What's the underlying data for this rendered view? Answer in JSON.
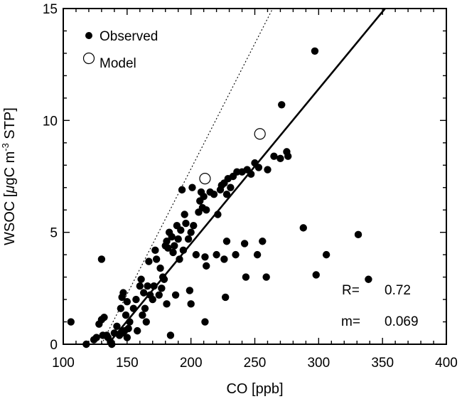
{
  "chart_data": {
    "type": "scatter",
    "xlabel": "CO [ppb]",
    "ylabel_parts": [
      "WSOC [",
      "μ",
      "gC m",
      "-3",
      " STP]"
    ],
    "xlim": [
      100,
      400
    ],
    "ylim": [
      0,
      15
    ],
    "xticks": [
      100,
      150,
      200,
      250,
      300,
      350,
      400
    ],
    "yticks": [
      0,
      5,
      10,
      15
    ],
    "grid": false,
    "legend_position": "top-left",
    "series": [
      {
        "name": "Observed",
        "marker": "filled-circle",
        "color": "#000000",
        "points": [
          [
            106,
            1.0
          ],
          [
            118,
            0.0
          ],
          [
            124,
            0.2
          ],
          [
            126,
            0.3
          ],
          [
            128,
            0.9
          ],
          [
            130,
            1.1
          ],
          [
            130,
            3.8
          ],
          [
            131,
            0.4
          ],
          [
            132,
            1.2
          ],
          [
            134,
            0.4
          ],
          [
            135,
            0.3
          ],
          [
            137,
            0.1
          ],
          [
            138,
            0.0
          ],
          [
            140,
            0.5
          ],
          [
            142,
            0.8
          ],
          [
            144,
            0.4
          ],
          [
            145,
            1.6
          ],
          [
            146,
            0.5
          ],
          [
            146,
            2.1
          ],
          [
            147,
            2.3
          ],
          [
            148,
            0.6
          ],
          [
            149,
            1.3
          ],
          [
            150,
            0.3
          ],
          [
            150,
            1.9
          ],
          [
            151,
            0.7
          ],
          [
            152,
            1.0
          ],
          [
            155,
            1.6
          ],
          [
            157,
            2.0
          ],
          [
            158,
            0.6
          ],
          [
            160,
            2.6
          ],
          [
            161,
            2.9
          ],
          [
            162,
            1.3
          ],
          [
            163,
            2.3
          ],
          [
            164,
            1.6
          ],
          [
            165,
            1.0
          ],
          [
            166,
            2.6
          ],
          [
            167,
            3.7
          ],
          [
            168,
            2.2
          ],
          [
            170,
            2.0
          ],
          [
            171,
            2.6
          ],
          [
            172,
            4.2
          ],
          [
            173,
            3.8
          ],
          [
            175,
            2.2
          ],
          [
            176,
            3.4
          ],
          [
            177,
            2.5
          ],
          [
            178,
            3.0
          ],
          [
            179,
            2.9
          ],
          [
            180,
            4.4
          ],
          [
            181,
            4.6
          ],
          [
            181,
            1.8
          ],
          [
            182,
            4.3
          ],
          [
            183,
            5.0
          ],
          [
            184,
            0.4
          ],
          [
            185,
            4.8
          ],
          [
            186,
            4.1
          ],
          [
            187,
            4.4
          ],
          [
            188,
            2.2
          ],
          [
            189,
            5.3
          ],
          [
            190,
            4.7
          ],
          [
            191,
            3.8
          ],
          [
            192,
            5.1
          ],
          [
            193,
            6.9
          ],
          [
            194,
            4.2
          ],
          [
            195,
            5.8
          ],
          [
            196,
            5.4
          ],
          [
            198,
            4.7
          ],
          [
            199,
            2.4
          ],
          [
            200,
            5.0
          ],
          [
            200,
            1.8
          ],
          [
            201,
            7.0
          ],
          [
            202,
            5.3
          ],
          [
            204,
            4.0
          ],
          [
            206,
            5.9
          ],
          [
            207,
            6.4
          ],
          [
            208,
            6.8
          ],
          [
            209,
            6.1
          ],
          [
            210,
            6.6
          ],
          [
            211,
            3.9
          ],
          [
            211,
            1.0
          ],
          [
            212,
            6.0
          ],
          [
            212,
            3.5
          ],
          [
            215,
            6.8
          ],
          [
            218,
            6.7
          ],
          [
            220,
            4.0
          ],
          [
            221,
            5.8
          ],
          [
            223,
            6.9
          ],
          [
            224,
            7.1
          ],
          [
            226,
            7.2
          ],
          [
            226,
            3.8
          ],
          [
            227,
            2.1
          ],
          [
            228,
            6.7
          ],
          [
            228,
            4.6
          ],
          [
            229,
            7.4
          ],
          [
            231,
            7.0
          ],
          [
            233,
            7.5
          ],
          [
            235,
            4.0
          ],
          [
            236,
            7.7
          ],
          [
            240,
            7.7
          ],
          [
            242,
            4.5
          ],
          [
            243,
            3.0
          ],
          [
            244,
            7.8
          ],
          [
            247,
            7.6
          ],
          [
            250,
            8.1
          ],
          [
            252,
            4.0
          ],
          [
            253,
            7.9
          ],
          [
            256,
            4.6
          ],
          [
            259,
            3.0
          ],
          [
            260,
            7.8
          ],
          [
            265,
            8.4
          ],
          [
            270,
            8.3
          ],
          [
            271,
            10.7
          ],
          [
            275,
            8.6
          ],
          [
            276,
            8.4
          ],
          [
            288,
            5.2
          ],
          [
            297,
            13.1
          ],
          [
            298,
            3.1
          ],
          [
            306,
            4.0
          ],
          [
            331,
            4.9
          ],
          [
            339,
            2.9
          ]
        ]
      },
      {
        "name": "Model",
        "marker": "open-circle",
        "color": "#000000",
        "points": [
          [
            211,
            7.4
          ],
          [
            254,
            9.4
          ]
        ]
      }
    ],
    "lines": [
      {
        "name": "fit",
        "style": "solid",
        "from": [
          135,
          0.0
        ],
        "to": [
          352,
          15.0
        ]
      },
      {
        "name": "1:1 reference",
        "style": "dotted",
        "from": [
          130,
          0.0
        ],
        "to": [
          264,
          15.0
        ]
      }
    ],
    "annotations": {
      "r_label": "R=",
      "r_value": "0.72",
      "m_label": "m=",
      "m_value": "0.069"
    }
  }
}
